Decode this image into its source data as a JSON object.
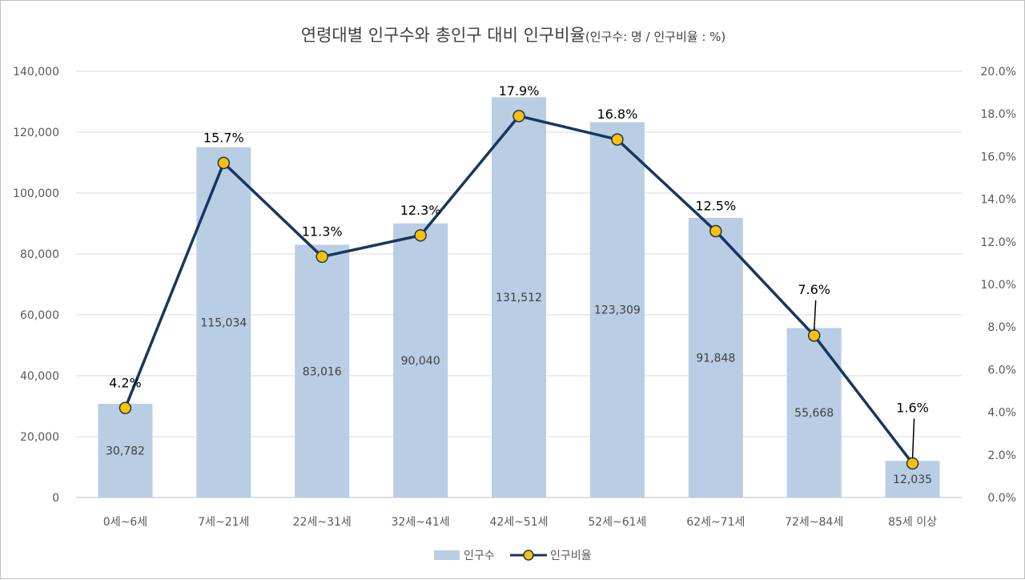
{
  "chart_data": {
    "type": "bar+line",
    "title": "연령대별 인구수와 총인구 대비 인구비율",
    "subtitle": "(인구수: 명 / 인구비율 : %)",
    "categories": [
      "0세~6세",
      "7세~21세",
      "22세~31세",
      "32세~41세",
      "42세~51세",
      "52세~61세",
      "62세~71세",
      "72세~84세",
      "85세 이상"
    ],
    "series": [
      {
        "name": "인구수",
        "type": "bar",
        "axis": "left",
        "values": [
          30782,
          115034,
          83016,
          90040,
          131512,
          123309,
          91848,
          55668,
          12035
        ],
        "labels": [
          "30,782",
          "115,034",
          "83,016",
          "90,040",
          "131,512",
          "123,309",
          "91,848",
          "55,668",
          "12,035"
        ],
        "color": "#b9cde5"
      },
      {
        "name": "인구비율",
        "type": "line",
        "axis": "right",
        "values": [
          4.2,
          15.7,
          11.3,
          12.3,
          17.9,
          16.8,
          12.5,
          7.6,
          1.6
        ],
        "labels": [
          "4.2%",
          "15.7%",
          "11.3%",
          "12.3%",
          "17.9%",
          "16.8%",
          "12.5%",
          "7.6%",
          "1.6%"
        ],
        "color": "#17375e",
        "marker_color": "#ffc000"
      }
    ],
    "left_axis": {
      "min": 0,
      "max": 140000,
      "step": 20000,
      "ticks": [
        "0",
        "20,000",
        "40,000",
        "60,000",
        "80,000",
        "100,000",
        "120,000",
        "140,000"
      ]
    },
    "right_axis": {
      "min": 0,
      "max": 20,
      "step": 2,
      "ticks": [
        "0.0%",
        "2.0%",
        "4.0%",
        "6.0%",
        "8.0%",
        "10.0%",
        "12.0%",
        "14.0%",
        "16.0%",
        "18.0%",
        "20.0%"
      ]
    },
    "grid": true,
    "legend": "bottom",
    "colors": {
      "grid": "#d9d9d9",
      "text": "#595959"
    }
  }
}
